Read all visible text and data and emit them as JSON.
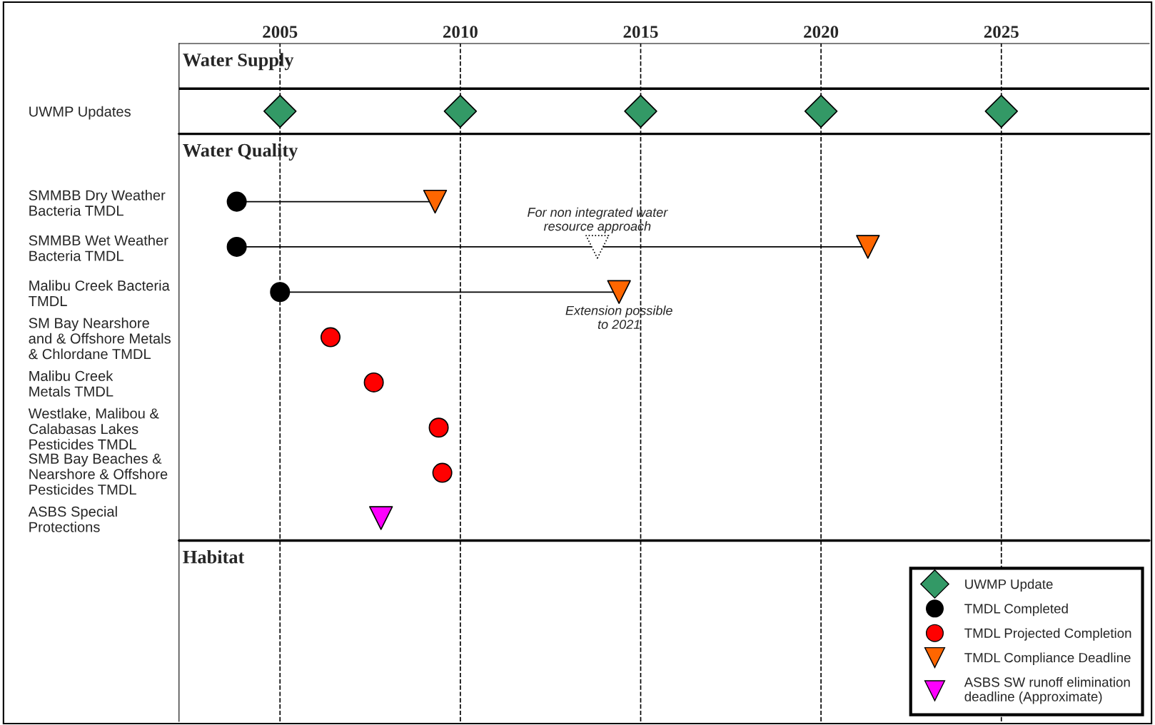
{
  "chart_data": {
    "type": "scatter",
    "orientation": "horizontal",
    "categories": [
      null,
      "UWMP Updates",
      null,
      "SMMBB Dry Weather\nBacteria TMDL",
      "SMMBB Wet Weather\nBacteria TMDL",
      "Malibu Creek Bacteria\nTMDL",
      "SM Bay Nearshore\nand & Offshore Metals\n& Chlordane TMDL",
      "Malibu Creek\nMetals TMDL",
      "Westlake, Malibou &\nCalabasas Lakes\nPesticides TMDL",
      "SMB Bay Beaches &\nNearshore & Offshore\nPesticides TMDL",
      "ASBS Special\nProtections",
      null,
      null,
      null,
      null
    ],
    "xlim": [
      2002.2,
      2029.1
    ],
    "xticks": [
      2005,
      2010,
      2015,
      2020,
      2025
    ],
    "grid": "x",
    "line_style": "dashed",
    "legend": "bottom right",
    "series": [
      {
        "name": "UWMP Update",
        "color": "#339966",
        "marker": "diamond",
        "values": [
          null,
          2005,
          null,
          null,
          null,
          null,
          null,
          null,
          null,
          null,
          null,
          null,
          null,
          null,
          null
        ]
      },
      {
        "color": "#339966",
        "marker": "diamond",
        "values": [
          null,
          2010,
          null,
          null,
          null,
          null,
          null,
          null,
          null,
          null,
          null,
          null,
          null,
          null,
          null
        ]
      },
      {
        "color": "#339966",
        "marker": "diamond",
        "values": [
          null,
          2015,
          null,
          null,
          null,
          null,
          null,
          null,
          null,
          null,
          null,
          null,
          null,
          null,
          null
        ]
      },
      {
        "color": "#339966",
        "marker": "diamond",
        "values": [
          null,
          2020,
          null,
          null,
          null,
          null,
          null,
          null,
          null,
          null,
          null,
          null,
          null,
          null,
          null
        ]
      },
      {
        "color": "#339966",
        "marker": "diamond",
        "values": [
          null,
          2025,
          null,
          null,
          null,
          null,
          null,
          null,
          null,
          null,
          null,
          null,
          null,
          null,
          null
        ]
      },
      {
        "name": "TMDL Completed",
        "color": "#000000",
        "marker": "circle",
        "values": [
          null,
          null,
          null,
          2003.8,
          2003.8,
          2005.0,
          null,
          null,
          null,
          null,
          null,
          null,
          null,
          null,
          null
        ]
      },
      {
        "name": "TMDL Projected Completion",
        "color": "#ff0000",
        "marker": "circle",
        "values": [
          null,
          null,
          null,
          null,
          null,
          null,
          2006.4,
          2007.6,
          2009.4,
          2009.5,
          null,
          null,
          null,
          null,
          null
        ]
      },
      {
        "name": "TMDL Compliance Deadline",
        "color": "#ff6600",
        "marker": "triangle",
        "values": [
          null,
          null,
          null,
          2009.3,
          2021.3,
          2014.4,
          null,
          null,
          null,
          null,
          null,
          null,
          null,
          null,
          null
        ]
      },
      {
        "name": "ASBS SW runoff elimination\ndeadline (Approximate)",
        "color": "#ff00ff",
        "marker": "triangle",
        "values": [
          null,
          null,
          null,
          null,
          null,
          null,
          null,
          null,
          null,
          null,
          2007.8,
          null,
          null,
          null,
          null
        ]
      },
      {
        "color": "#ffffff",
        "marker": "triangle",
        "line_style": "dotted",
        "values": [
          null,
          null,
          null,
          null,
          2013.8,
          null,
          null,
          null,
          null,
          null,
          null,
          null,
          null,
          null,
          null
        ]
      }
    ],
    "annotations": [
      "Water Supply",
      "Water Quality",
      "Habitat",
      "For non integrated water\nresource approach",
      "Extension possible\nto 2021"
    ]
  }
}
